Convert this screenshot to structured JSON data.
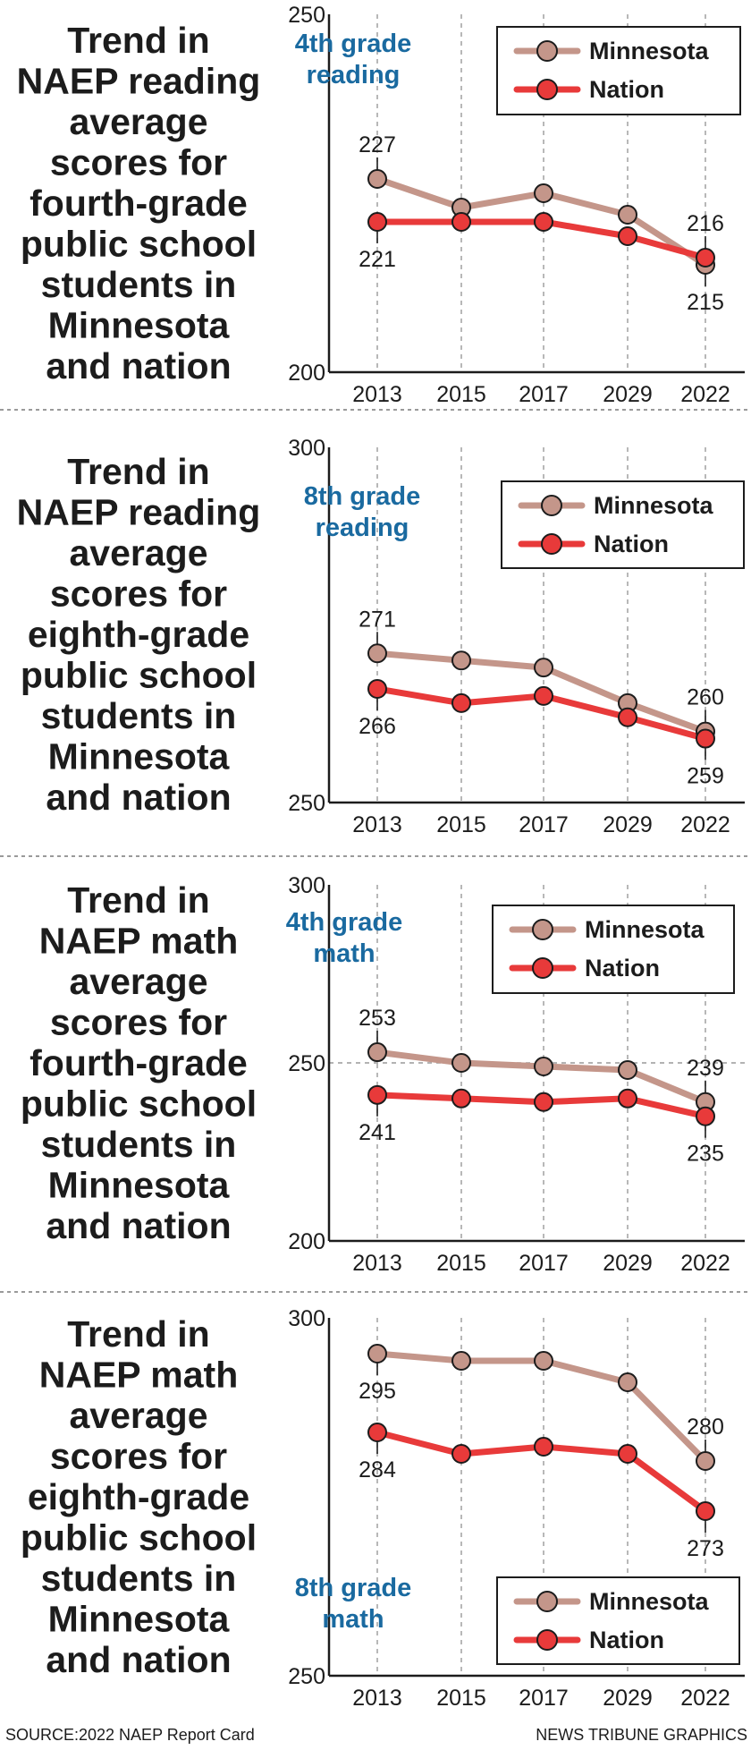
{
  "colors": {
    "minnesota": "#c4968a",
    "nation": "#e83a3a",
    "chart_title": "#1a6aa0",
    "separator": "#9a9a9a",
    "grid": "#9a9a9a",
    "text": "#1c1c1c"
  },
  "chart_data": [
    {
      "type": "line",
      "panel_title": [
        "Trend in",
        "NAEP reading",
        "average",
        "scores for",
        "fourth-grade",
        "public school",
        "students in",
        "Minnesota",
        "and nation"
      ],
      "title": [
        "4th grade",
        "reading"
      ],
      "title_position": "top-left",
      "legend_position": "top-right",
      "categories": [
        "2013",
        "2015",
        "2017",
        "2029",
        "2022"
      ],
      "ylim": [
        200,
        250
      ],
      "ytick_labels": [
        "250",
        "200"
      ],
      "series": [
        {
          "name": "Minnesota",
          "values": [
            227,
            223,
            225,
            222,
            215
          ]
        },
        {
          "name": "Nation",
          "values": [
            221,
            221,
            221,
            219,
            216
          ]
        }
      ],
      "annotations": [
        {
          "text": "227",
          "series": 0,
          "index": 0,
          "where": "above"
        },
        {
          "text": "221",
          "series": 1,
          "index": 0,
          "where": "below"
        },
        {
          "text": "216",
          "series": 1,
          "index": 4,
          "where": "above"
        },
        {
          "text": "215",
          "series": 0,
          "index": 4,
          "where": "below"
        }
      ]
    },
    {
      "type": "line",
      "panel_title": [
        "Trend in",
        "NAEP reading",
        "average",
        "scores for",
        "eighth-grade",
        "public school",
        "students in",
        "Minnesota",
        "and nation"
      ],
      "title": [
        "8th grade",
        "reading"
      ],
      "title_position": "top-left",
      "legend_position": "top-right",
      "categories": [
        "2013",
        "2015",
        "2017",
        "2029",
        "2022"
      ],
      "ylim": [
        250,
        300
      ],
      "ytick_labels": [
        "300",
        "250"
      ],
      "series": [
        {
          "name": "Minnesota",
          "values": [
            271,
            270,
            269,
            264,
            260
          ]
        },
        {
          "name": "Nation",
          "values": [
            266,
            264,
            265,
            262,
            259
          ]
        }
      ],
      "annotations": [
        {
          "text": "271",
          "series": 0,
          "index": 0,
          "where": "above"
        },
        {
          "text": "266",
          "series": 1,
          "index": 0,
          "where": "below"
        },
        {
          "text": "260",
          "series": 0,
          "index": 4,
          "where": "above"
        },
        {
          "text": "259",
          "series": 1,
          "index": 4,
          "where": "below"
        }
      ]
    },
    {
      "type": "line",
      "panel_title": [
        "Trend in",
        "NAEP math",
        "average",
        "scores for",
        "fourth-grade",
        "public school",
        "students in",
        "Minnesota",
        "and nation"
      ],
      "title": [
        "4th grade",
        "math"
      ],
      "title_position": "top-left",
      "legend_position": "top-right",
      "categories": [
        "2013",
        "2015",
        "2017",
        "2029",
        "2022"
      ],
      "ylim": [
        200,
        300
      ],
      "ytick_labels": [
        "300",
        "250",
        "200"
      ],
      "series": [
        {
          "name": "Minnesota",
          "values": [
            253,
            250,
            249,
            248,
            239
          ]
        },
        {
          "name": "Nation",
          "values": [
            241,
            240,
            239,
            240,
            235
          ]
        }
      ],
      "annotations": [
        {
          "text": "253",
          "series": 0,
          "index": 0,
          "where": "above"
        },
        {
          "text": "241",
          "series": 1,
          "index": 0,
          "where": "below"
        },
        {
          "text": "239",
          "series": 0,
          "index": 4,
          "where": "above"
        },
        {
          "text": "235",
          "series": 1,
          "index": 4,
          "where": "below"
        }
      ]
    },
    {
      "type": "line",
      "panel_title": [
        "Trend in",
        "NAEP math",
        "average",
        "scores for",
        "eighth-grade",
        "public school",
        "students in",
        "Minnesota",
        "and nation"
      ],
      "title": [
        "8th grade",
        "math"
      ],
      "title_position": "bottom-left",
      "legend_position": "bottom-right",
      "categories": [
        "2013",
        "2015",
        "2017",
        "2029",
        "2022"
      ],
      "ylim": [
        250,
        300
      ],
      "ytick_labels": [
        "300",
        "250"
      ],
      "series": [
        {
          "name": "Minnesota",
          "values": [
            295,
            294,
            294,
            291,
            280
          ]
        },
        {
          "name": "Nation",
          "values": [
            284,
            281,
            282,
            281,
            273
          ]
        }
      ],
      "annotations": [
        {
          "text": "295",
          "series": 0,
          "index": 0,
          "where": "below"
        },
        {
          "text": "284",
          "series": 1,
          "index": 0,
          "where": "below"
        },
        {
          "text": "280",
          "series": 0,
          "index": 4,
          "where": "above"
        },
        {
          "text": "273",
          "series": 1,
          "index": 4,
          "where": "below"
        }
      ]
    }
  ],
  "footer": {
    "source": "SOURCE:2022 NAEP Report Card",
    "credit": "NEWS TRIBUNE GRAPHICS"
  }
}
